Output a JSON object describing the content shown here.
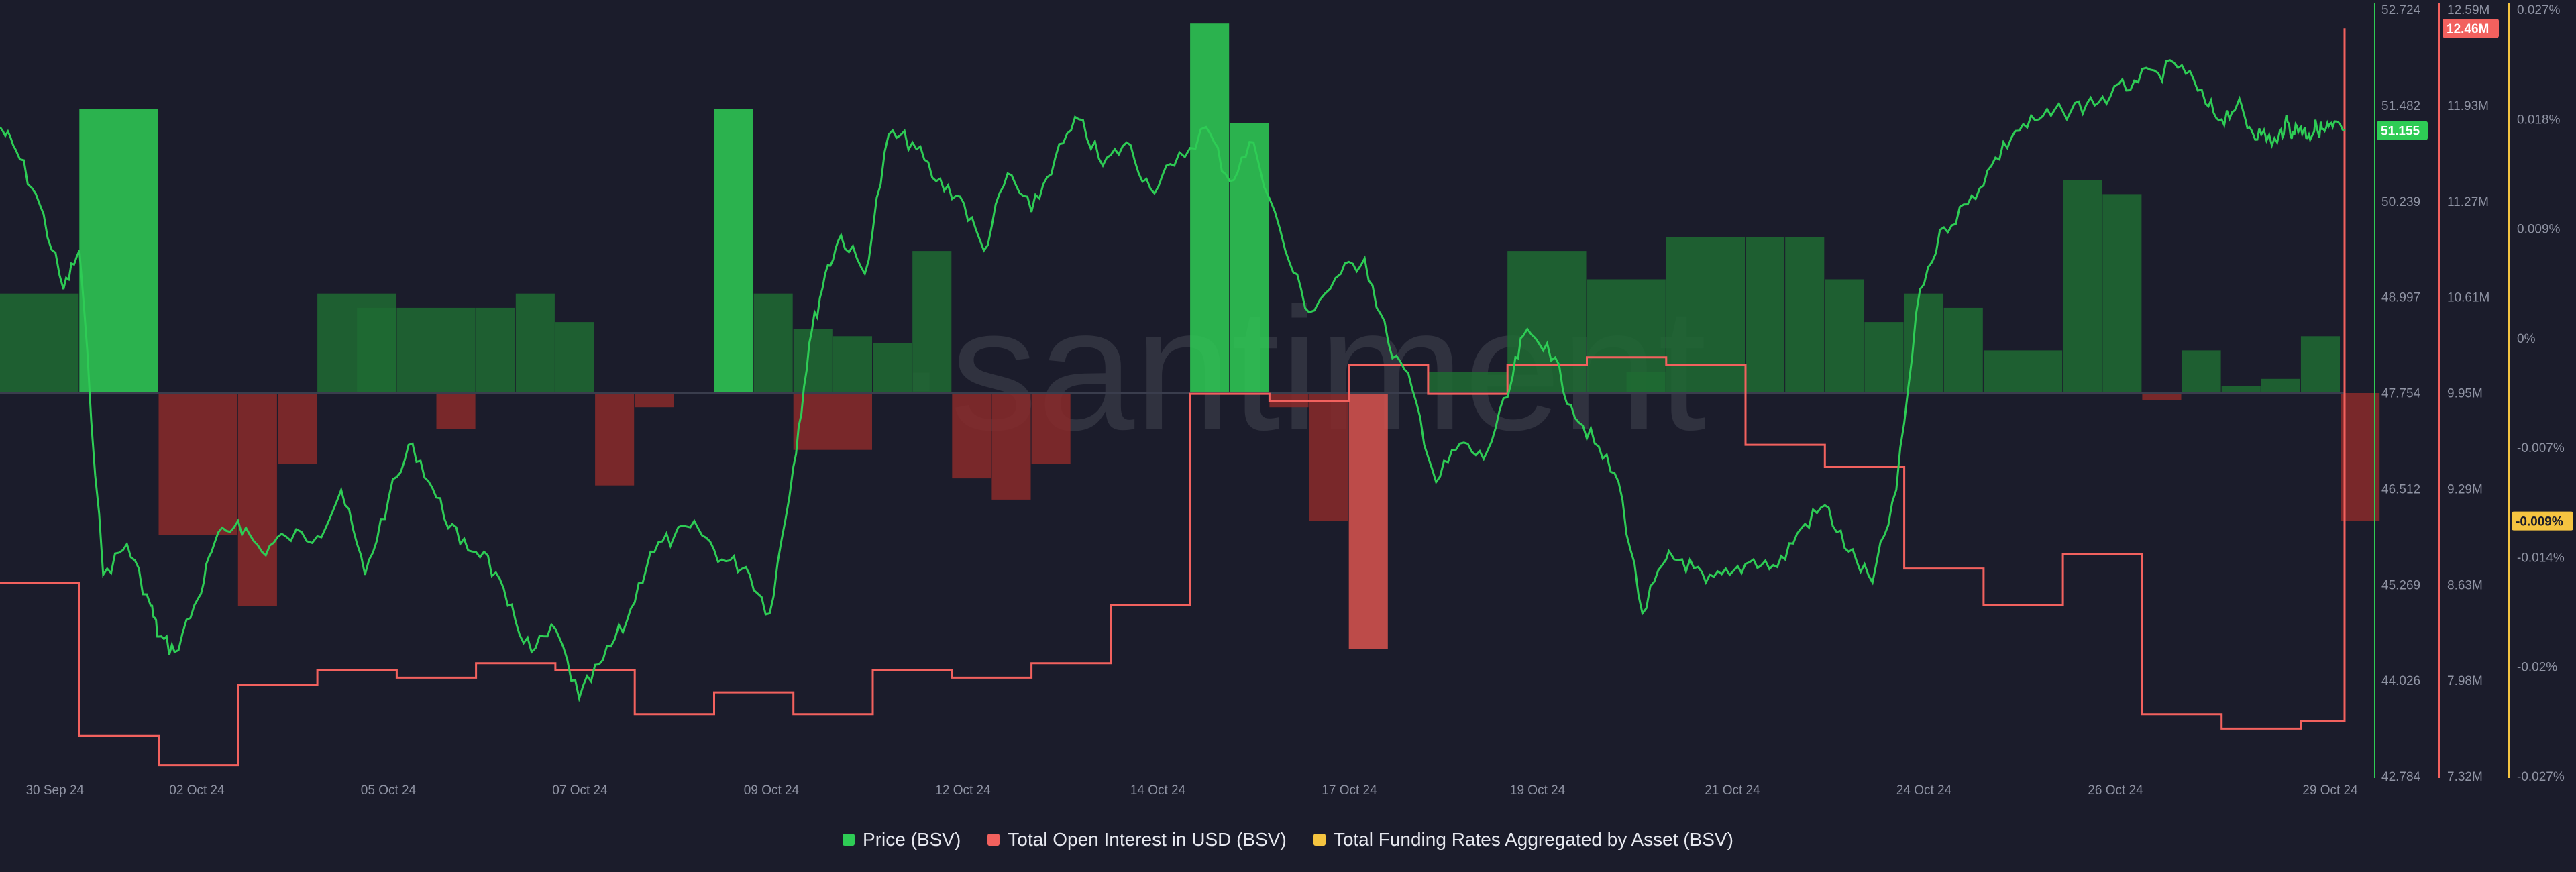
{
  "watermark": "·santiment",
  "legend": [
    {
      "label": "Price (BSV)",
      "color": "#2ecc55"
    },
    {
      "label": "Total Open Interest in USD (BSV)",
      "color": "#f2615e"
    },
    {
      "label": "Total Funding Rates Aggregated by Asset (BSV)",
      "color": "#f5c440"
    }
  ],
  "chart_data": {
    "type": "line",
    "x_ticks": [
      "30 Sep 24",
      "02 Oct 24",
      "05 Oct 24",
      "07 Oct 24",
      "09 Oct 24",
      "12 Oct 24",
      "14 Oct 24",
      "17 Oct 24",
      "19 Oct 24",
      "21 Oct 24",
      "24 Oct 24",
      "26 Oct 24",
      "29 Oct 24"
    ],
    "axes": {
      "price": {
        "label": "Price (BSV)",
        "min": 42.784,
        "max": 52.724,
        "ticks": [
          "52.724",
          "51.482",
          "50.239",
          "48.997",
          "47.754",
          "46.512",
          "45.269",
          "44.026",
          "42.784"
        ],
        "color": "#2ecc55"
      },
      "open_interest": {
        "label": "Total Open Interest in USD (BSV)",
        "min": 7.32,
        "max": 12.59,
        "unit": "M",
        "ticks": [
          "12.59M",
          "11.93M",
          "11.27M",
          "10.61M",
          "9.95M",
          "9.29M",
          "8.63M",
          "7.98M",
          "7.32M"
        ],
        "color": "#f2615e"
      },
      "funding_rate": {
        "label": "Total Funding Rates Aggregated by Asset (BSV)",
        "min": -0.027,
        "max": 0.027,
        "unit": "%",
        "ticks": [
          "0.027%",
          "0.018%",
          "0.009%",
          "0%",
          "-0.007%",
          "-0.014%",
          "-0.02%",
          "-0.027%"
        ],
        "color": "#f5c440"
      }
    },
    "current": {
      "price": "51.155",
      "open_interest": "12.46M",
      "funding_rate": "-0.009%"
    },
    "series": [
      {
        "name": "Price (BSV)",
        "axis": "price",
        "color": "#2ecc55",
        "t": [
          0,
          0.2,
          0.5,
          0.8,
          1.0,
          1.3,
          1.6,
          1.9,
          2.0,
          2.2,
          2.5,
          2.7,
          3.0,
          3.3,
          3.6,
          4.0,
          4.3,
          4.6,
          4.9,
          5.2,
          5.5,
          5.8,
          6.1,
          6.4,
          6.7,
          7.0,
          7.3,
          7.6,
          7.9,
          8.2,
          8.5,
          8.8,
          9.1,
          9.4,
          9.7,
          10.0,
          10.2,
          10.4,
          10.6,
          10.9,
          11.2,
          11.5,
          11.8,
          12.1,
          12.4,
          12.7,
          13.0,
          13.3,
          13.6,
          13.9,
          14.2,
          14.5,
          14.8,
          15.2,
          15.5,
          15.8,
          16.2,
          16.5,
          16.9,
          17.2,
          17.5,
          17.8,
          18.1,
          18.4,
          18.7,
          19.0,
          19.2,
          19.5,
          19.8,
          20.1,
          20.4,
          20.7,
          21.0,
          21.2,
          21.5,
          21.8,
          22.1,
          22.4,
          22.7,
          23.0,
          23.3,
          23.6,
          23.9,
          24.2,
          24.5,
          24.8,
          25.1,
          25.4,
          25.7,
          26.0,
          26.3,
          26.6,
          26.9,
          27.2,
          27.5,
          27.8,
          28.0,
          28.2,
          28.35,
          28.5,
          28.7,
          28.8,
          28.9,
          29.0,
          29.1,
          29.2,
          29.3,
          29.4,
          29.55
        ],
        "values": [
          51.2,
          50.9,
          50.2,
          49.1,
          49.6,
          45.4,
          45.8,
          45.0,
          44.6,
          44.4,
          45.1,
          45.8,
          46.1,
          45.7,
          45.9,
          45.9,
          46.5,
          45.4,
          46.4,
          47.1,
          46.4,
          45.8,
          45.7,
          45.0,
          44.4,
          44.7,
          43.8,
          44.3,
          44.8,
          45.7,
          45.9,
          46.0,
          45.6,
          45.5,
          44.9,
          46.8,
          48.4,
          49.3,
          49.8,
          49.3,
          51.1,
          51.0,
          50.5,
          50.3,
          49.6,
          50.6,
          50.1,
          50.8,
          51.3,
          50.7,
          51.0,
          50.4,
          50.7,
          51.2,
          50.5,
          51.0,
          49.6,
          48.8,
          49.3,
          49.5,
          48.4,
          47.8,
          46.6,
          47.1,
          46.9,
          47.7,
          48.5,
          48.4,
          47.6,
          47.1,
          46.6,
          44.9,
          45.6,
          45.6,
          45.3,
          45.4,
          45.6,
          45.5,
          46.0,
          46.3,
          45.7,
          45.3,
          46.5,
          49.1,
          49.9,
          50.2,
          50.7,
          51.15,
          51.3,
          51.4,
          51.5,
          51.6,
          51.8,
          51.9,
          52.0,
          51.5,
          51.3,
          51.5,
          51.2,
          51.1,
          51.0,
          51.25,
          51.15,
          51.2,
          51.1,
          51.2,
          51.15,
          51.2,
          51.155
        ]
      },
      {
        "name": "Total Open Interest in USD (BSV)",
        "axis": "open_interest",
        "color": "#f2615e",
        "step_x": [
          0,
          1,
          2,
          3,
          4,
          5,
          6,
          7,
          8,
          9,
          10,
          11,
          12,
          13,
          14,
          15,
          16,
          17,
          18,
          19,
          20,
          21,
          22,
          23,
          24,
          25,
          26,
          27,
          28,
          29,
          29.55
        ],
        "values": [
          8.65,
          7.6,
          7.4,
          7.95,
          8.05,
          8.0,
          8.1,
          8.05,
          7.75,
          7.9,
          7.75,
          8.05,
          8.0,
          8.1,
          8.5,
          9.95,
          9.9,
          10.15,
          9.95,
          10.15,
          10.2,
          10.15,
          9.6,
          9.45,
          8.75,
          8.5,
          8.85,
          7.75,
          7.65,
          7.7,
          12.46
        ]
      },
      {
        "name": "Total Funding Rates Aggregated by Asset (BSV)",
        "axis": "funding_rate",
        "color": "#f5c440",
        "bars_x": [
          0,
          1,
          2,
          3,
          4,
          5,
          6,
          7,
          8,
          9,
          10,
          11,
          12,
          13,
          14,
          15,
          16,
          17,
          18,
          19,
          20,
          21,
          22,
          23,
          24,
          25,
          26,
          27,
          28,
          29
        ],
        "values": [
          0.007,
          0.02,
          -0.01,
          -0.015,
          -0.005,
          0.007,
          0.006,
          0.006,
          -0.0025,
          0.006,
          0.007,
          0.005,
          -0.0065,
          -0.001,
          0.02,
          0.007,
          -0.004,
          0.0045,
          0.004,
          0.0035,
          0.01,
          -0.006,
          -0.0075,
          -0.005,
          0.026,
          0.019,
          -0.001,
          -0.009,
          -0.018,
          0.0015,
          0.01,
          0.008,
          0.0015,
          0.011,
          0.011,
          0.011,
          0.008,
          0.005,
          0.007,
          0.006,
          0.003,
          0.015,
          0.014,
          -0.0005,
          0.003,
          0.0005,
          0.001,
          0.004,
          -0.009
        ],
        "bar_slots": [
          [
            0,
            1
          ],
          [
            1,
            1
          ],
          [
            2,
            1
          ],
          [
            3,
            0.5
          ],
          [
            3.5,
            0.5
          ],
          [
            4,
            1
          ],
          [
            4.5,
            0.5
          ],
          [
            5,
            1
          ],
          [
            5.5,
            0.5
          ],
          [
            6,
            0.5
          ],
          [
            6.5,
            0.5
          ],
          [
            7,
            0.5
          ],
          [
            7.5,
            0.5
          ],
          [
            8,
            0.5
          ],
          [
            9,
            0.5
          ],
          [
            9.5,
            0.5
          ],
          [
            10,
            1
          ],
          [
            10,
            0.5
          ],
          [
            10.5,
            0.5
          ],
          [
            11,
            0.5
          ],
          [
            11.5,
            0.5
          ],
          [
            12,
            0.5
          ],
          [
            12.5,
            0.5
          ],
          [
            13,
            0.5
          ],
          [
            15,
            0.5
          ],
          [
            15.5,
            0.5
          ],
          [
            16,
            0.5
          ],
          [
            16.5,
            0.5
          ],
          [
            17,
            0.5
          ],
          [
            18,
            1
          ],
          [
            19,
            1
          ],
          [
            20,
            1
          ],
          [
            20.5,
            0.5
          ],
          [
            21,
            1
          ],
          [
            22,
            0.5
          ],
          [
            22.5,
            0.5
          ],
          [
            23,
            0.5
          ],
          [
            23.5,
            0.5
          ],
          [
            24,
            0.5
          ],
          [
            24.5,
            0.5
          ],
          [
            25,
            1
          ],
          [
            26,
            0.5
          ],
          [
            26.5,
            0.5
          ],
          [
            27,
            0.5
          ],
          [
            27.5,
            0.5
          ],
          [
            28,
            0.5
          ],
          [
            28.5,
            0.5
          ],
          [
            29,
            0.5
          ],
          [
            29.5,
            0.5
          ]
        ]
      }
    ],
    "grid": false,
    "legend_position": "bottom-center"
  }
}
